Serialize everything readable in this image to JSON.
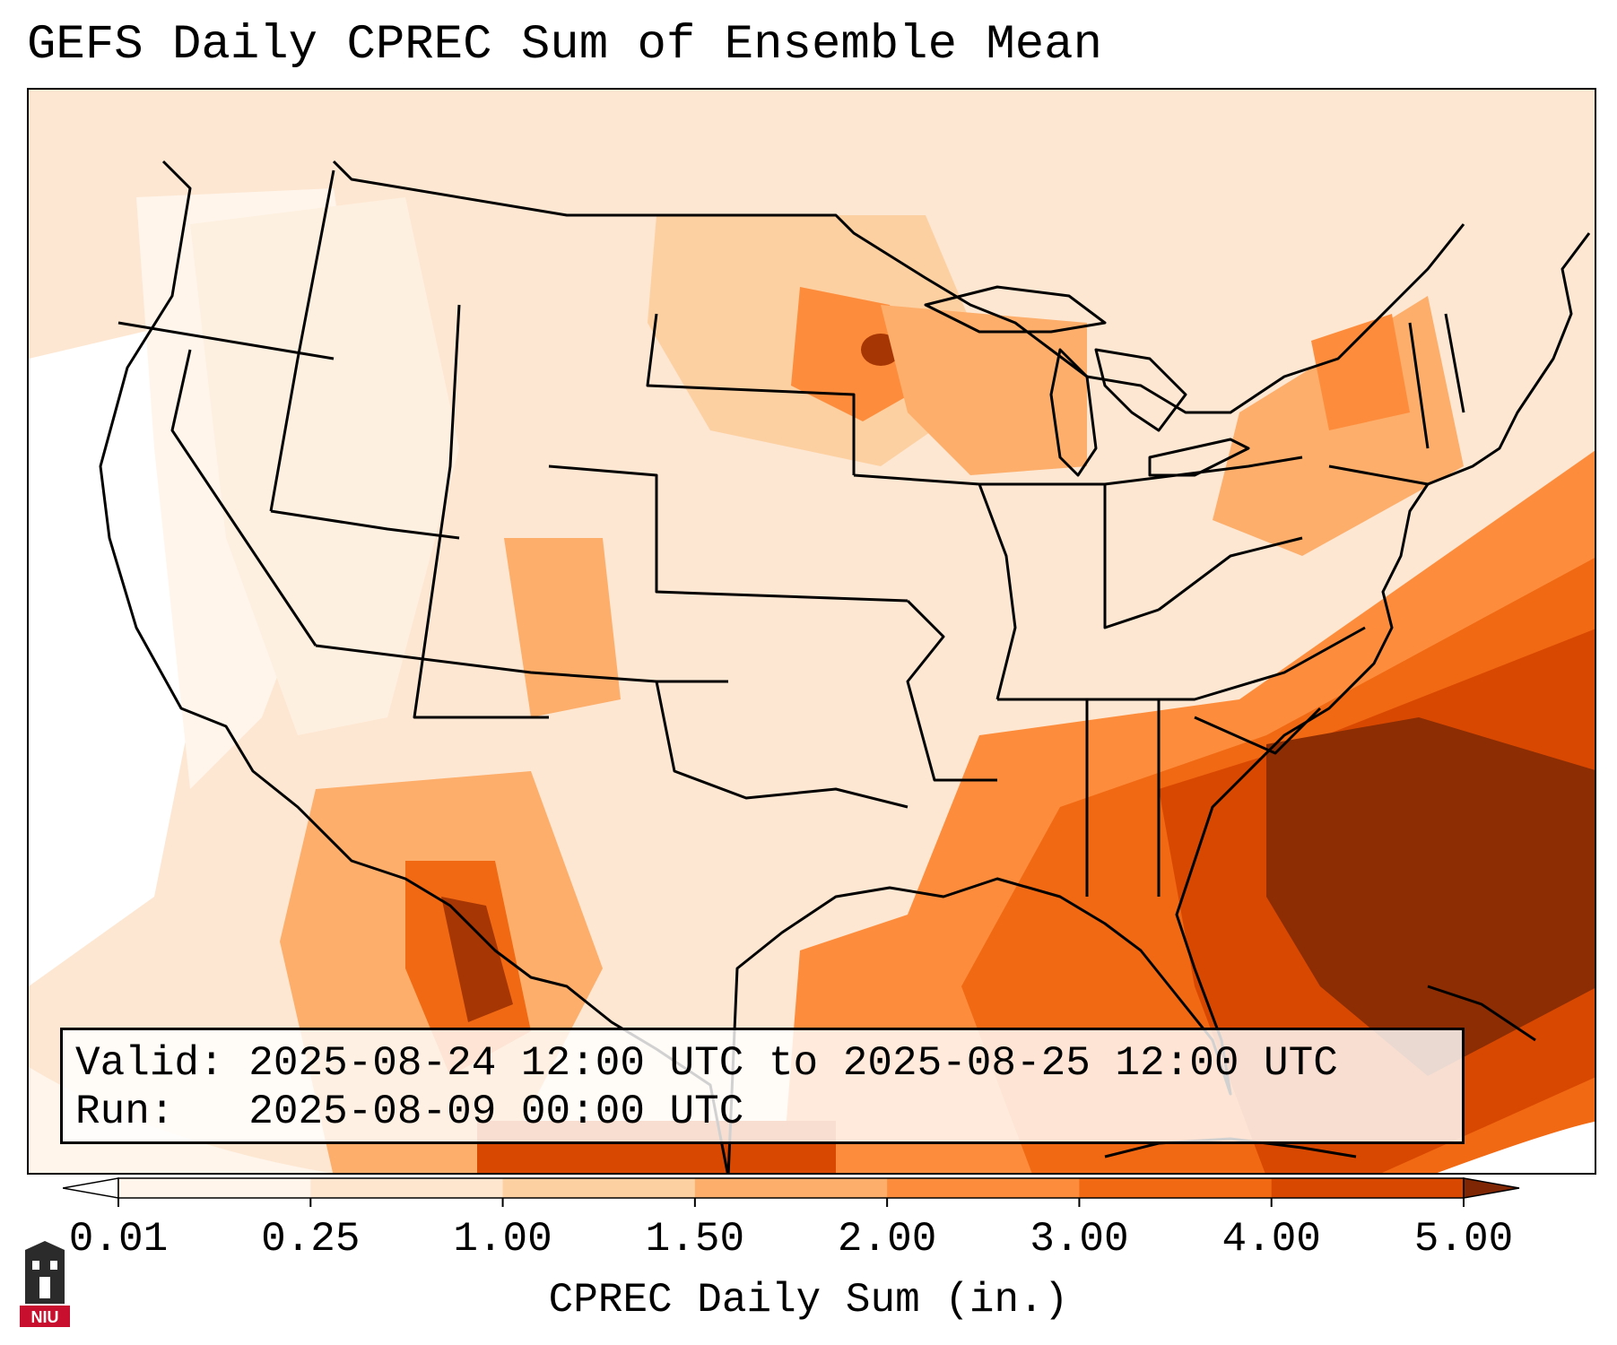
{
  "title": "GEFS Daily CPREC Sum of Ensemble Mean",
  "info": {
    "valid_label": "Valid:",
    "valid_value": "2025-08-24 12:00 UTC to 2025-08-25 12:00 UTC",
    "run_label": "Run:",
    "run_value": "2025-08-09 00:00 UTC"
  },
  "colorbar": {
    "label": "CPREC Daily Sum (in.)",
    "ticks": [
      "0.01",
      "0.25",
      "1.00",
      "1.50",
      "2.00",
      "3.00",
      "4.00",
      "5.00"
    ],
    "colors": [
      "#fff5eb",
      "#fee6ce",
      "#fdd0a2",
      "#fdae6b",
      "#fd8d3c",
      "#f16913",
      "#d94801",
      "#8c2d04"
    ],
    "under_color": "#ffffff",
    "over_color": "#7f2704"
  },
  "logo": {
    "text": "NIU",
    "color": "#c8102e"
  }
}
